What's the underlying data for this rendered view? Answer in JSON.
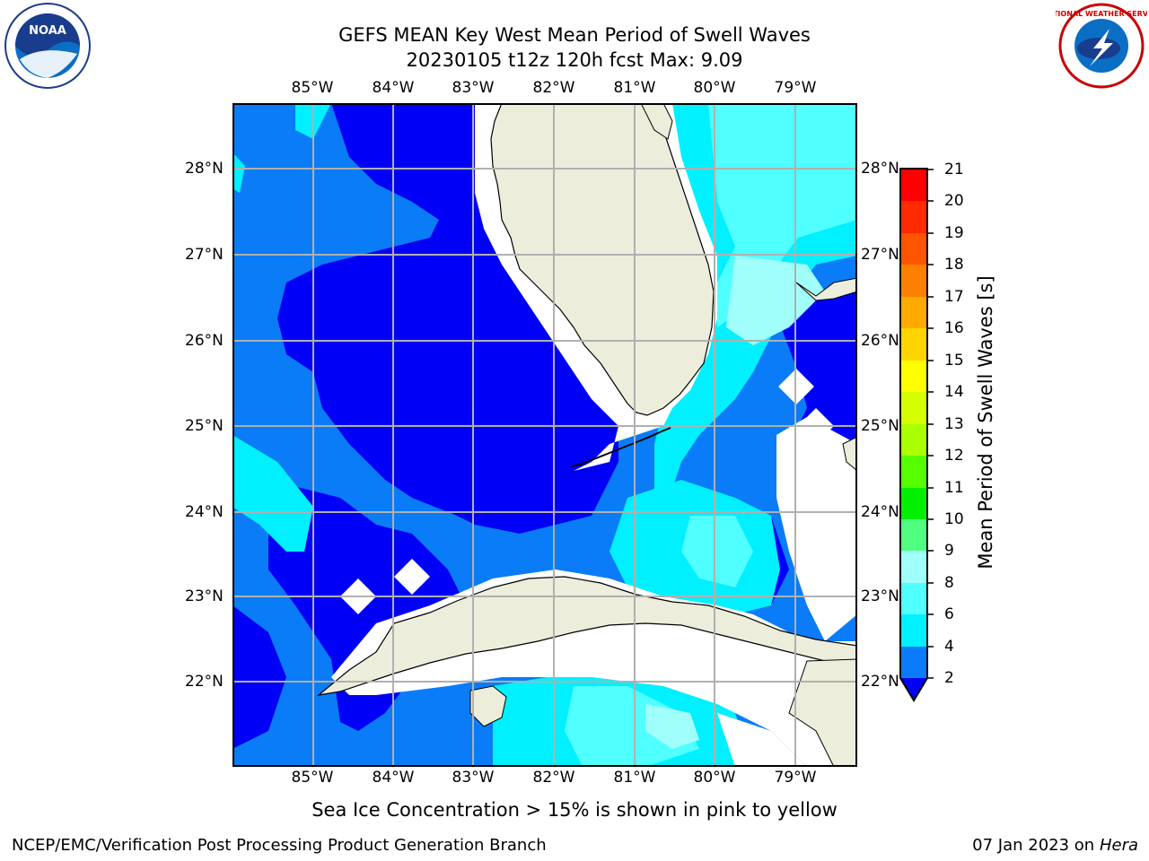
{
  "title_line1": "GEFS MEAN Key West Mean Period of Swell Waves",
  "title_line2": "20230105 t12z 120h fcst   Max: 9.09",
  "lon_ticks": [
    "85°W",
    "84°W",
    "83°W",
    "82°W",
    "81°W",
    "80°W",
    "79°W"
  ],
  "lat_ticks": [
    "28°N",
    "27°N",
    "26°N",
    "25°N",
    "24°N",
    "23°N",
    "22°N"
  ],
  "colorbar": {
    "label": "Mean Period of Swell Waves [s]",
    "ticks": [
      "21",
      "20",
      "19",
      "18",
      "17",
      "16",
      "15",
      "14",
      "13",
      "12",
      "11",
      "10",
      "9",
      "8",
      "6",
      "4",
      "2"
    ]
  },
  "note": "Sea Ice Concentration > 15% is shown in pink to yellow",
  "footer_left": "NCEP/EMC/Verification Post Processing Product Generation Branch",
  "footer_right_date": "07 Jan 2023 on",
  "footer_right_machine": "Hera",
  "logo_left_text": "NOAA",
  "logo_right_text": "NATIONAL WEATHER SERVICE",
  "colors": {
    "land": "#ededdc",
    "level_2_4": "#0000f7",
    "level_4_6": "#0a7cf7",
    "level_6_8": "#00f0ff",
    "level_8_9": "#50ffff",
    "level_9_10": "#a0fffb"
  }
}
